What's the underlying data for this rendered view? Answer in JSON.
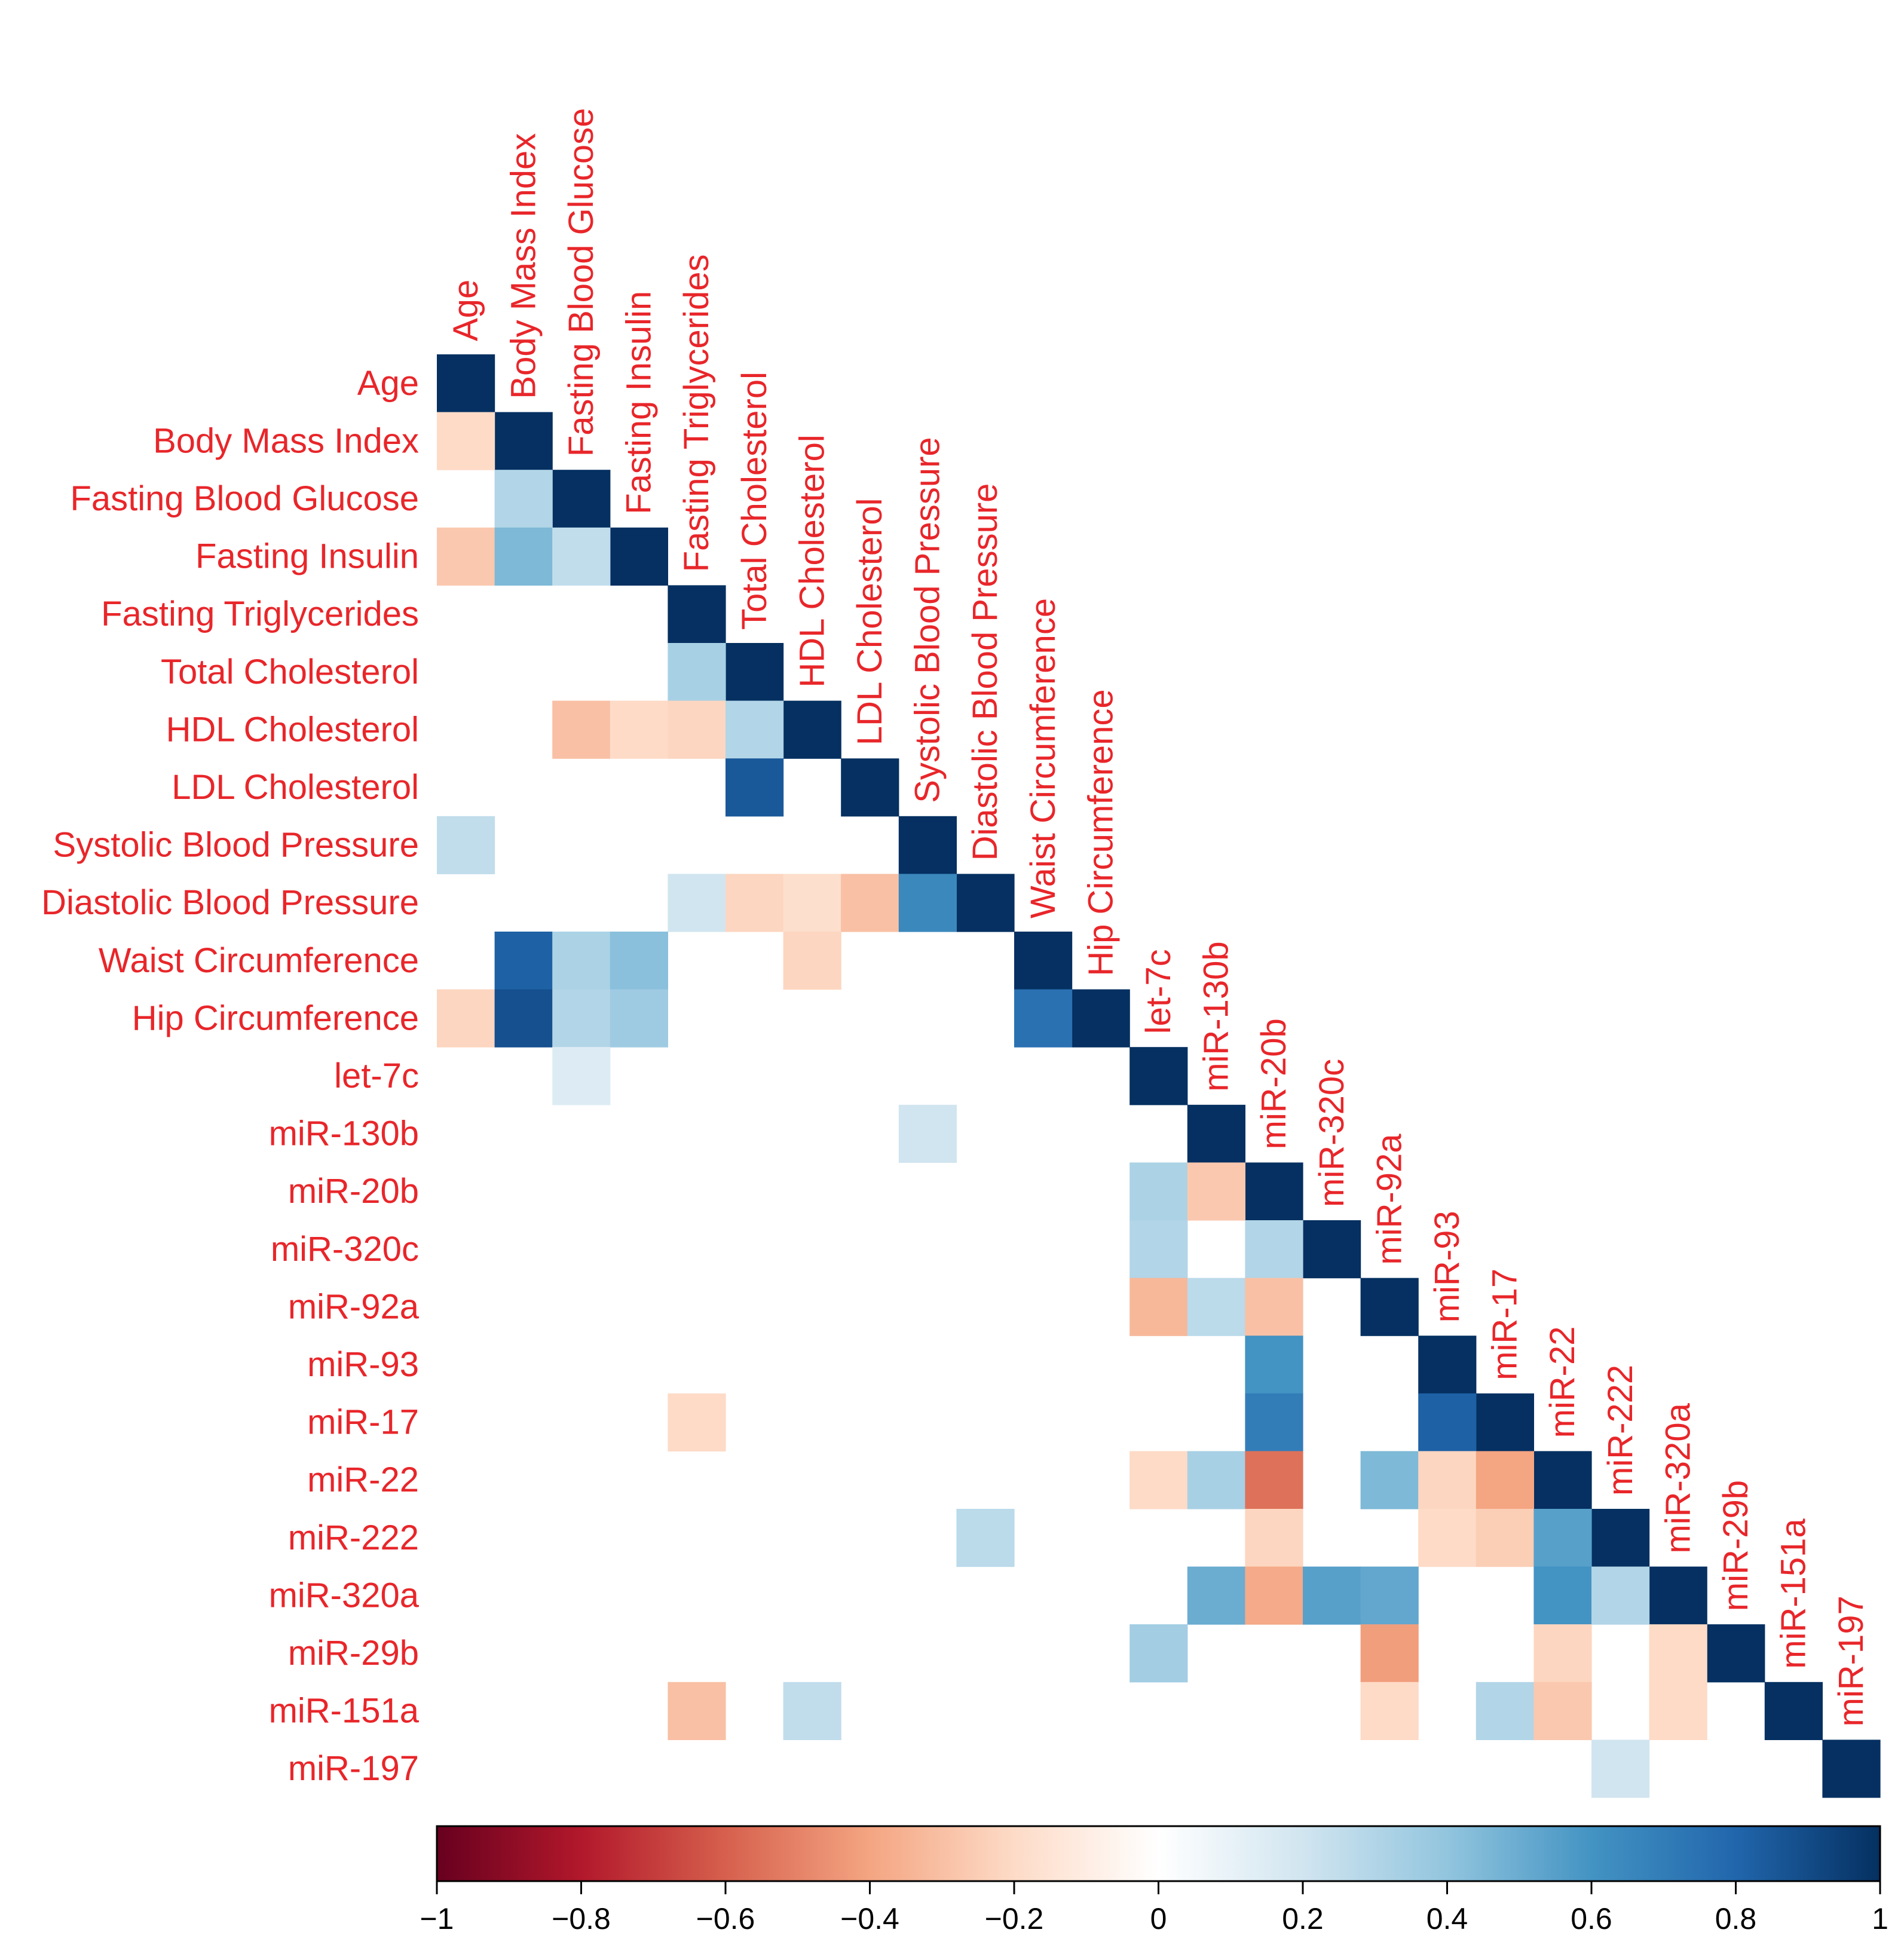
{
  "chart_data": {
    "type": "heatmap",
    "title": "",
    "subtitle": "",
    "layout": "lower-triangular correlation matrix",
    "variables": [
      "Age",
      "Body Mass Index",
      "Fasting Blood Glucose",
      "Fasting Insulin",
      "Fasting Triglycerides",
      "Total Cholesterol",
      "HDL Cholesterol",
      "LDL Cholesterol",
      "Systolic Blood Pressure",
      "Diastolic Blood Pressure",
      "Waist Circumference",
      "Hip Circumference",
      "let-7c",
      "miR-130b",
      "miR-20b",
      "miR-320c",
      "miR-92a",
      "miR-93",
      "miR-17",
      "miR-22",
      "miR-222",
      "miR-320a",
      "miR-29b",
      "miR-151a",
      "miR-197"
    ],
    "diagonal_value": 1,
    "cells": [
      {
        "row": "Body Mass Index",
        "col": "Age",
        "value": -0.2
      },
      {
        "row": "Fasting Blood Glucose",
        "col": "Body Mass Index",
        "value": 0.3
      },
      {
        "row": "Fasting Insulin",
        "col": "Age",
        "value": -0.27
      },
      {
        "row": "Fasting Insulin",
        "col": "Body Mass Index",
        "value": 0.45
      },
      {
        "row": "Fasting Insulin",
        "col": "Fasting Blood Glucose",
        "value": 0.25
      },
      {
        "row": "Total Cholesterol",
        "col": "Fasting Triglycerides",
        "value": 0.33
      },
      {
        "row": "HDL Cholesterol",
        "col": "Fasting Blood Glucose",
        "value": -0.3
      },
      {
        "row": "HDL Cholesterol",
        "col": "Fasting Insulin",
        "value": -0.2
      },
      {
        "row": "HDL Cholesterol",
        "col": "Fasting Triglycerides",
        "value": -0.22
      },
      {
        "row": "HDL Cholesterol",
        "col": "Total Cholesterol",
        "value": 0.3
      },
      {
        "row": "LDL Cholesterol",
        "col": "Total Cholesterol",
        "value": 0.85
      },
      {
        "row": "Systolic Blood Pressure",
        "col": "Age",
        "value": 0.25
      },
      {
        "row": "Diastolic Blood Pressure",
        "col": "Fasting Triglycerides",
        "value": 0.2
      },
      {
        "row": "Diastolic Blood Pressure",
        "col": "Total Cholesterol",
        "value": -0.22
      },
      {
        "row": "Diastolic Blood Pressure",
        "col": "HDL Cholesterol",
        "value": -0.18
      },
      {
        "row": "Diastolic Blood Pressure",
        "col": "LDL Cholesterol",
        "value": -0.3
      },
      {
        "row": "Diastolic Blood Pressure",
        "col": "Systolic Blood Pressure",
        "value": 0.65
      },
      {
        "row": "Waist Circumference",
        "col": "Body Mass Index",
        "value": 0.82
      },
      {
        "row": "Waist Circumference",
        "col": "Fasting Blood Glucose",
        "value": 0.32
      },
      {
        "row": "Waist Circumference",
        "col": "Fasting Insulin",
        "value": 0.42
      },
      {
        "row": "Waist Circumference",
        "col": "HDL Cholesterol",
        "value": -0.22
      },
      {
        "row": "Hip Circumference",
        "col": "Age",
        "value": -0.22
      },
      {
        "row": "Hip Circumference",
        "col": "Body Mass Index",
        "value": 0.88
      },
      {
        "row": "Hip Circumference",
        "col": "Fasting Blood Glucose",
        "value": 0.3
      },
      {
        "row": "Hip Circumference",
        "col": "Fasting Insulin",
        "value": 0.36
      },
      {
        "row": "Hip Circumference",
        "col": "Waist Circumference",
        "value": 0.75
      },
      {
        "row": "let-7c",
        "col": "Fasting Blood Glucose",
        "value": 0.15
      },
      {
        "row": "miR-130b",
        "col": "Systolic Blood Pressure",
        "value": 0.2
      },
      {
        "row": "miR-20b",
        "col": "let-7c",
        "value": 0.32
      },
      {
        "row": "miR-20b",
        "col": "miR-130b",
        "value": -0.27
      },
      {
        "row": "miR-320c",
        "col": "let-7c",
        "value": 0.3
      },
      {
        "row": "miR-320c",
        "col": "miR-20b",
        "value": 0.3
      },
      {
        "row": "miR-92a",
        "col": "let-7c",
        "value": -0.33
      },
      {
        "row": "miR-92a",
        "col": "miR-130b",
        "value": 0.27
      },
      {
        "row": "miR-92a",
        "col": "miR-20b",
        "value": -0.3
      },
      {
        "row": "miR-93",
        "col": "miR-20b",
        "value": 0.6
      },
      {
        "row": "miR-17",
        "col": "Fasting Triglycerides",
        "value": -0.2
      },
      {
        "row": "miR-17",
        "col": "miR-20b",
        "value": 0.7
      },
      {
        "row": "miR-17",
        "col": "miR-93",
        "value": 0.82
      },
      {
        "row": "miR-22",
        "col": "let-7c",
        "value": -0.2
      },
      {
        "row": "miR-22",
        "col": "miR-130b",
        "value": 0.33
      },
      {
        "row": "miR-22",
        "col": "miR-20b",
        "value": -0.55
      },
      {
        "row": "miR-22",
        "col": "miR-92a",
        "value": 0.45
      },
      {
        "row": "miR-22",
        "col": "miR-93",
        "value": -0.22
      },
      {
        "row": "miR-22",
        "col": "miR-17",
        "value": -0.4
      },
      {
        "row": "miR-222",
        "col": "Diastolic Blood Pressure",
        "value": 0.27
      },
      {
        "row": "miR-222",
        "col": "miR-20b",
        "value": -0.22
      },
      {
        "row": "miR-222",
        "col": "miR-93",
        "value": -0.2
      },
      {
        "row": "miR-222",
        "col": "miR-17",
        "value": -0.25
      },
      {
        "row": "miR-222",
        "col": "miR-22",
        "value": 0.55
      },
      {
        "row": "miR-320a",
        "col": "miR-130b",
        "value": 0.5
      },
      {
        "row": "miR-320a",
        "col": "miR-20b",
        "value": -0.38
      },
      {
        "row": "miR-320a",
        "col": "miR-320c",
        "value": 0.55
      },
      {
        "row": "miR-320a",
        "col": "miR-92a",
        "value": 0.52
      },
      {
        "row": "miR-320a",
        "col": "miR-22",
        "value": 0.6
      },
      {
        "row": "miR-320a",
        "col": "miR-222",
        "value": 0.3
      },
      {
        "row": "miR-29b",
        "col": "let-7c",
        "value": 0.35
      },
      {
        "row": "miR-29b",
        "col": "miR-92a",
        "value": -0.42
      },
      {
        "row": "miR-29b",
        "col": "miR-22",
        "value": -0.22
      },
      {
        "row": "miR-29b",
        "col": "miR-320a",
        "value": -0.2
      },
      {
        "row": "miR-151a",
        "col": "Fasting Triglycerides",
        "value": -0.3
      },
      {
        "row": "miR-151a",
        "col": "HDL Cholesterol",
        "value": 0.25
      },
      {
        "row": "miR-151a",
        "col": "miR-92a",
        "value": -0.2
      },
      {
        "row": "miR-151a",
        "col": "miR-17",
        "value": 0.3
      },
      {
        "row": "miR-151a",
        "col": "miR-22",
        "value": -0.27
      },
      {
        "row": "miR-151a",
        "col": "miR-320a",
        "value": -0.2
      },
      {
        "row": "miR-197",
        "col": "miR-222",
        "value": 0.2
      }
    ],
    "colorbar": {
      "range": [
        -1,
        1
      ],
      "ticks": [
        -1,
        -0.8,
        -0.6,
        -0.4,
        -0.2,
        0,
        0.2,
        0.4,
        0.6,
        0.8,
        1
      ],
      "tick_labels": [
        "−1",
        "−0.8",
        "−0.6",
        "−0.4",
        "−0.2",
        "0",
        "0.2",
        "0.4",
        "0.6",
        "0.8",
        "1"
      ],
      "palette": [
        "#67001f",
        "#b2182b",
        "#d6604d",
        "#f4a582",
        "#fddbc7",
        "#ffffff",
        "#d1e5f0",
        "#92c5de",
        "#4393c3",
        "#2166ac",
        "#053061"
      ]
    },
    "label_color": "#e8262a",
    "xlabel": "",
    "ylabel": "",
    "grid": false,
    "legend": "colorbar bottom"
  }
}
